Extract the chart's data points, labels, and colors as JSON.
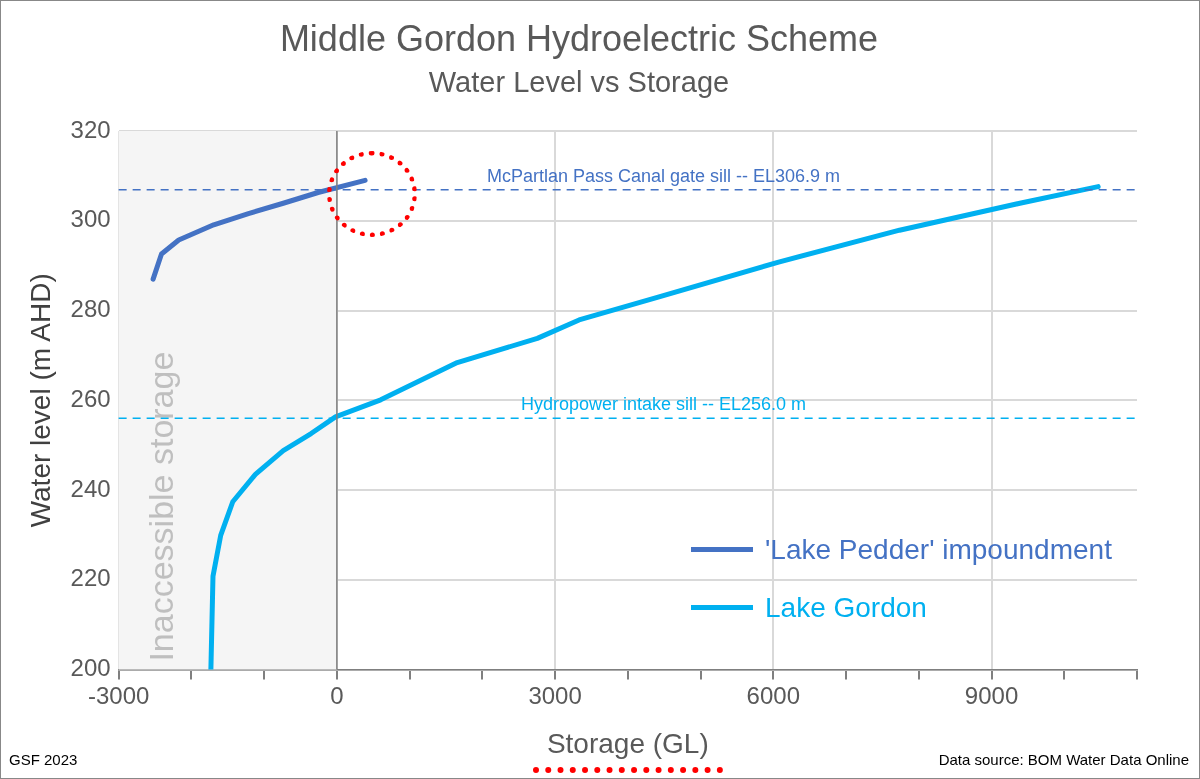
{
  "chart_data": {
    "type": "line",
    "title": "Middle Gordon Hydroelectric Scheme",
    "subtitle": "Water Level vs Storage",
    "xlabel": "Storage (GL)",
    "ylabel": "Water level (m AHD)",
    "xlim": [
      -3000,
      11000
    ],
    "xticks": [
      -3000,
      {
        "value": -2000,
        "label": null
      },
      {
        "value": -1000,
        "label": null
      },
      0,
      {
        "value": 1000,
        "label": null
      },
      {
        "value": 2000,
        "label": null
      },
      3000,
      {
        "value": 4000,
        "label": null
      },
      {
        "value": 5000,
        "label": null
      },
      6000,
      {
        "value": 7000,
        "label": null
      },
      {
        "value": 8000,
        "label": null
      },
      9000,
      {
        "value": 10000,
        "label": null
      },
      {
        "value": 11000,
        "label": null
      }
    ],
    "ylim": [
      200,
      320
    ],
    "yticks": [
      200,
      220,
      240,
      260,
      280,
      300,
      320
    ],
    "grid": true,
    "legend": "bottom right",
    "marker": "none",
    "line_style": "solid",
    "series": [
      {
        "name": "'Lake Pedder' impoundment",
        "color": "#4472c4",
        "x": [
          -2526,
          -2411,
          -2174,
          -1693,
          -1216,
          -737,
          -258,
          388
        ],
        "values": [
          287.0,
          292.6,
          295.7,
          299.1,
          301.6,
          303.9,
          306.3,
          309.0
        ]
      },
      {
        "name": "Lake Gordon",
        "color": "#00b0f0",
        "x": [
          -1732,
          -1703,
          -1597,
          -1431,
          -1120,
          -737,
          -354,
          -19,
          603,
          1655,
          2756,
          3330,
          4417,
          6073,
          7735,
          9390,
          10466
        ],
        "values": [
          200,
          220.8,
          229.9,
          237.4,
          243.5,
          248.8,
          252.6,
          256.3,
          260.1,
          268.4,
          273.8,
          277.9,
          283.0,
          290.8,
          297.9,
          303.9,
          307.6
        ]
      }
    ],
    "ref_lines": [
      {
        "axis": "y",
        "value": 306.9,
        "label": "McPartlan Pass Canal gate sill -- EL306.9 m",
        "color": "#4472c4",
        "line_style": "dashed"
      },
      {
        "axis": "y",
        "value": 256.0,
        "label": "Hydropower intake sill -- EL256.0 m",
        "color": "#00b0f0",
        "line_style": "dashed"
      }
    ],
    "bands": [
      {
        "axis": "x",
        "from": -3000,
        "to": 0,
        "label": "Inaccessible storage",
        "color": "#f5f5f5"
      }
    ],
    "annotations": [
      "GSF 2023",
      "Data source: BOM Water Data Online"
    ]
  }
}
